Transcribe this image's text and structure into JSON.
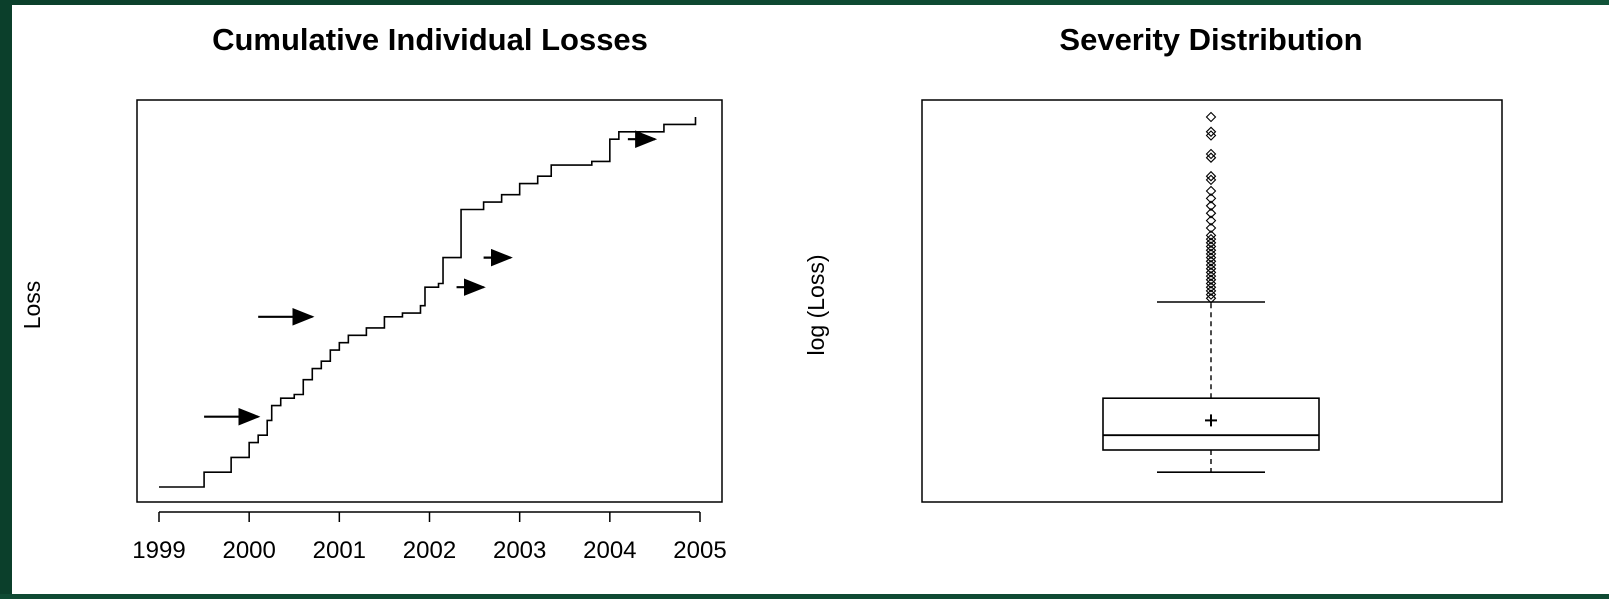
{
  "colors": {
    "background_border": "#0f4a33",
    "plot_background": "#ffffff",
    "ink": "#000000"
  },
  "chart_data": [
    {
      "type": "line",
      "title": "Cumulative Individual Losses",
      "xlabel": "",
      "ylabel": "Loss",
      "xlim": [
        1999,
        2005
      ],
      "ylim": [
        0,
        100
      ],
      "x_ticks": [
        "1999",
        "2000",
        "2001",
        "2002",
        "2003",
        "2004",
        "2005"
      ],
      "y_ticks_shown": false,
      "step": true,
      "points": [
        [
          1999.0,
          0
        ],
        [
          1999.5,
          4
        ],
        [
          1999.8,
          8
        ],
        [
          2000.0,
          12
        ],
        [
          2000.1,
          14
        ],
        [
          2000.2,
          15
        ],
        [
          2000.2,
          18
        ],
        [
          2000.25,
          19
        ],
        [
          2000.25,
          22
        ],
        [
          2000.35,
          24
        ],
        [
          2000.5,
          25
        ],
        [
          2000.6,
          26
        ],
        [
          2000.6,
          29
        ],
        [
          2000.7,
          32
        ],
        [
          2000.8,
          34
        ],
        [
          2000.9,
          37
        ],
        [
          2001.0,
          39
        ],
        [
          2001.1,
          41
        ],
        [
          2001.3,
          43
        ],
        [
          2001.5,
          46
        ],
        [
          2001.7,
          47
        ],
        [
          2001.9,
          49
        ],
        [
          2001.95,
          50
        ],
        [
          2001.95,
          54
        ],
        [
          2002.1,
          55
        ],
        [
          2002.15,
          58
        ],
        [
          2002.15,
          62
        ],
        [
          2002.35,
          62
        ],
        [
          2002.35,
          75
        ],
        [
          2002.6,
          77
        ],
        [
          2002.8,
          79
        ],
        [
          2003.0,
          82
        ],
        [
          2003.2,
          84
        ],
        [
          2003.35,
          87
        ],
        [
          2003.8,
          88
        ],
        [
          2004.0,
          90
        ],
        [
          2004.0,
          94
        ],
        [
          2004.1,
          96
        ],
        [
          2004.3,
          96
        ],
        [
          2004.6,
          98
        ],
        [
          2004.95,
          99
        ],
        [
          2004.95,
          100
        ]
      ],
      "annotations": [
        {
          "type": "arrow",
          "x_from": 1999.5,
          "x_to": 2000.1,
          "y": 19
        },
        {
          "type": "arrow",
          "x_from": 2000.1,
          "x_to": 2000.7,
          "y": 46
        },
        {
          "type": "arrow",
          "x_from": 2002.3,
          "x_to": 2002.6,
          "y": 54
        },
        {
          "type": "arrow",
          "x_from": 2002.6,
          "x_to": 2002.9,
          "y": 62
        },
        {
          "type": "arrow",
          "x_from": 2004.2,
          "x_to": 2004.5,
          "y": 94
        }
      ]
    },
    {
      "type": "boxplot",
      "title": "Severity Distribution",
      "xlabel": "",
      "ylabel": "log (Loss)",
      "y_ticks_shown": false,
      "ylim": [
        0,
        100
      ],
      "box": {
        "lower_whisker": 4,
        "q1": 10,
        "median": 14,
        "q3": 24,
        "upper_whisker": 50,
        "mean": 18
      },
      "outliers": [
        51,
        52,
        53,
        54,
        55,
        56,
        57,
        58,
        59,
        60,
        61,
        62,
        63,
        64,
        65,
        66,
        67,
        68,
        70,
        72,
        74,
        76,
        78,
        80,
        83,
        84,
        89,
        90,
        95,
        96,
        100
      ]
    }
  ]
}
